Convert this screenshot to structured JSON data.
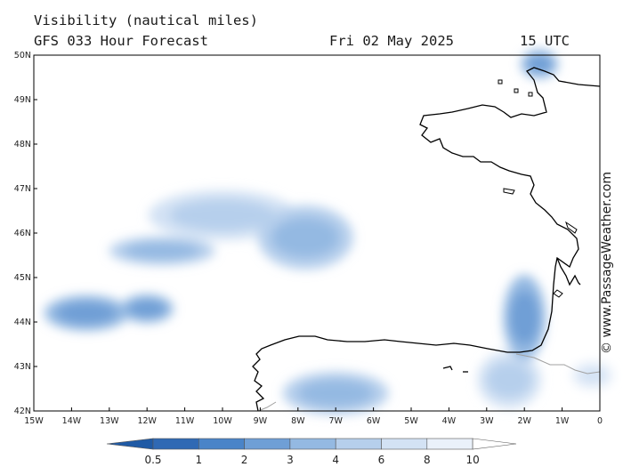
{
  "header": {
    "title": "Visibility (nautical miles)",
    "subtitle": "GFS 033 Hour Forecast",
    "date": "Fri 02 May 2025",
    "time": "15 UTC"
  },
  "credit": "© www.PassageWeather.com",
  "map": {
    "lon_range": [
      -15,
      0
    ],
    "lat_range": [
      42,
      50
    ],
    "lon_ticks": [
      "15W",
      "14W",
      "13W",
      "12W",
      "11W",
      "10W",
      "9W",
      "8W",
      "7W",
      "6W",
      "5W",
      "4W",
      "3W",
      "2W",
      "1W",
      "0"
    ],
    "lat_ticks": [
      "42N",
      "43N",
      "44N",
      "45N",
      "46N",
      "47N",
      "48N",
      "49N",
      "50N"
    ]
  },
  "legend": {
    "labels": [
      "0.5",
      "1",
      "2",
      "3",
      "4",
      "6",
      "8",
      "10"
    ],
    "colors": [
      "#2f69b4",
      "#4a84c8",
      "#6f9fd6",
      "#94b9e2",
      "#b6cfec",
      "#d3e2f4",
      "#eaf1fa",
      "#ffffff"
    ]
  },
  "fog_patches": [
    {
      "name": "fog-patch-biscay-north",
      "lon": -10.0,
      "lat": 46.4,
      "rx": 1.4,
      "ry": 0.35,
      "level": 4
    },
    {
      "name": "fog-patch-biscay-mid",
      "lon": -7.8,
      "lat": 45.9,
      "rx": 0.9,
      "ry": 0.45,
      "level": 3
    },
    {
      "name": "fog-patch-west",
      "lon": -11.6,
      "lat": 45.6,
      "rx": 1.0,
      "ry": 0.2,
      "level": 3
    },
    {
      "name": "fog-patch-southwest",
      "lon": -13.6,
      "lat": 44.2,
      "rx": 0.8,
      "ry": 0.25,
      "level": 2
    },
    {
      "name": "fog-patch-southwest-2",
      "lon": -12.0,
      "lat": 44.3,
      "rx": 0.5,
      "ry": 0.2,
      "level": 2
    },
    {
      "name": "fog-patch-galicia",
      "lon": -7.0,
      "lat": 42.4,
      "rx": 1.0,
      "ry": 0.3,
      "level": 3
    },
    {
      "name": "fog-patch-cantabria",
      "lon": -2.4,
      "lat": 42.7,
      "rx": 0.6,
      "ry": 0.4,
      "level": 4
    },
    {
      "name": "fog-patch-pyrenees",
      "lon": -0.2,
      "lat": 42.8,
      "rx": 0.4,
      "ry": 0.2,
      "level": 5
    },
    {
      "name": "fog-patch-landes",
      "lon": -2.0,
      "lat": 44.1,
      "rx": 0.4,
      "ry": 0.6,
      "level": 2
    },
    {
      "name": "fog-patch-channel",
      "lon": -1.6,
      "lat": 49.8,
      "rx": 0.35,
      "ry": 0.2,
      "level": 2
    }
  ]
}
